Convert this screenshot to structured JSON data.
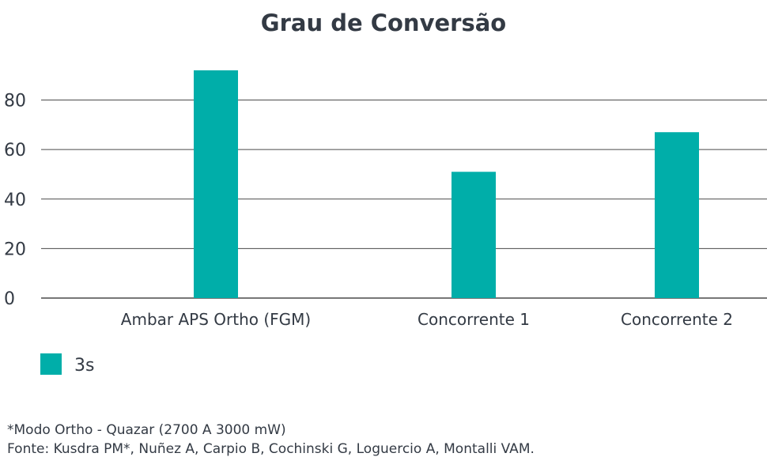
{
  "chart_data": {
    "type": "bar",
    "title": "Grau de Conversão",
    "categories": [
      "Ambar APS Ortho (FGM)",
      "Concorrente 1",
      "Concorrente 2"
    ],
    "series": [
      {
        "name": "3s",
        "values": [
          92,
          51,
          67
        ],
        "color": "#00aea9"
      }
    ],
    "yticks": [
      0,
      20,
      40,
      60,
      80
    ],
    "ylim": [
      0,
      97
    ],
    "xlabel": "",
    "ylabel": "",
    "grid": true,
    "legend_position": "bottom-left",
    "gridline_color": "#4a4a4a",
    "text_color": "#333a44"
  },
  "notes": {
    "line1": "*Modo Ortho - Quazar (2700 A 3000 mW)",
    "line2": "Fonte: Kusdra PM*, Nuñez A, Carpio B, Cochinski G, Loguercio A, Montalli VAM."
  }
}
